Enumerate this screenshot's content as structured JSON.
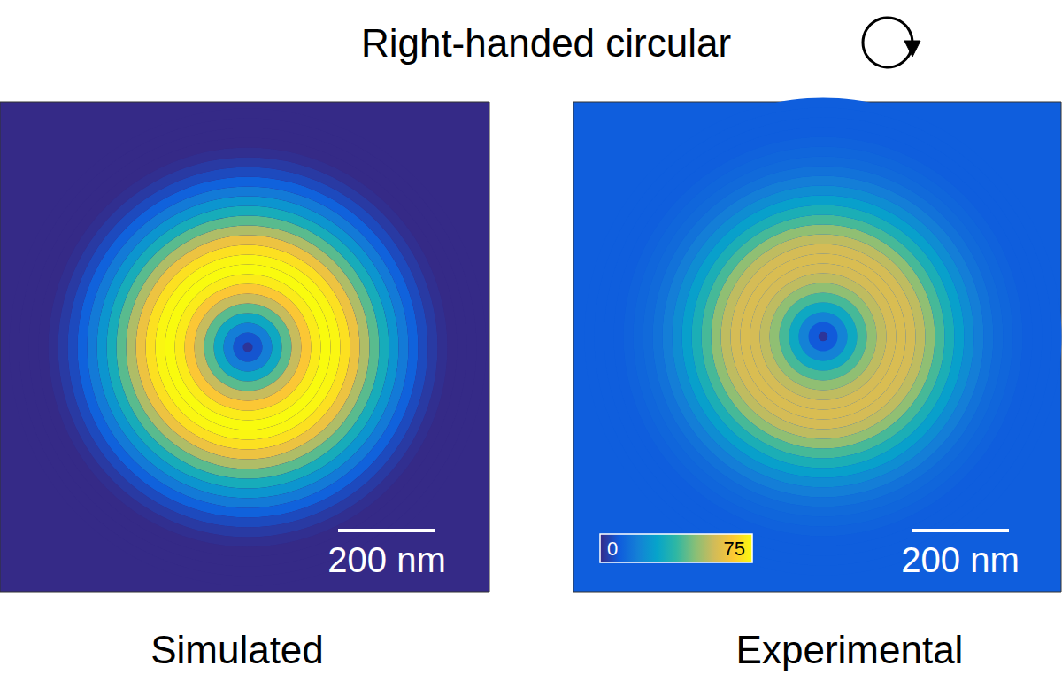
{
  "chart_data": {
    "type": "radial_heatmap",
    "title": "Right-handed circular",
    "panels": [
      {
        "label": "Simulated",
        "radius_nm": [
          0,
          20,
          40,
          60,
          80,
          100,
          120,
          140,
          160,
          180,
          200,
          220,
          240,
          260,
          280,
          300,
          320,
          340,
          360,
          380,
          400,
          420,
          440,
          460,
          480
        ],
        "intensity": [
          2,
          8,
          18,
          30,
          42,
          55,
          65,
          72,
          75,
          74,
          70,
          62,
          52,
          42,
          32,
          24,
          17,
          11,
          6,
          3,
          1,
          0,
          0,
          0,
          0
        ]
      },
      {
        "label": "Experimental",
        "radius_nm": [
          0,
          20,
          40,
          60,
          80,
          100,
          120,
          140,
          160,
          180,
          200,
          220,
          240,
          260,
          280,
          300,
          320,
          340,
          360,
          380,
          400,
          420,
          440,
          460,
          480
        ],
        "intensity": [
          2,
          9,
          19,
          30,
          40,
          48,
          54,
          57,
          58,
          57,
          54,
          48,
          40,
          33,
          27,
          22,
          18,
          15,
          13,
          12,
          11,
          10,
          10,
          10,
          10
        ]
      }
    ],
    "scale_bar": {
      "value": 200,
      "label": "200 nm"
    },
    "colorbar": {
      "range": [
        0,
        75
      ],
      "ticks": [
        0,
        75
      ]
    }
  }
}
